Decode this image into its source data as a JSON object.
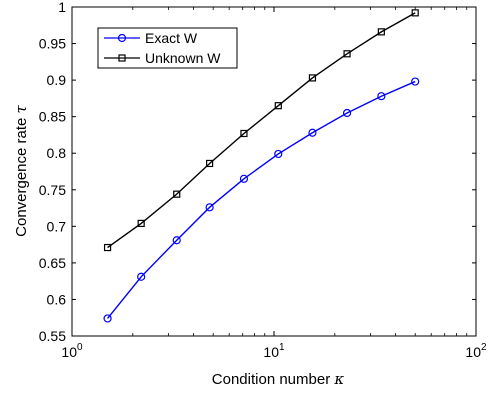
{
  "chart_data": {
    "type": "line",
    "xscale": "log",
    "xlim": [
      1,
      100
    ],
    "ylim": [
      0.55,
      1.0
    ],
    "xlabel": "Condition number",
    "xlabel_symbol": "κ",
    "ylabel": "Convergence rate",
    "ylabel_symbol": "τ",
    "x_ticks": [
      1,
      10,
      100
    ],
    "x_tick_labels": [
      {
        "base": "10",
        "exp": "0"
      },
      {
        "base": "10",
        "exp": "1"
      },
      {
        "base": "10",
        "exp": "2"
      }
    ],
    "y_ticks": [
      0.55,
      0.6,
      0.65,
      0.7,
      0.75,
      0.8,
      0.85,
      0.9,
      0.95,
      1.0
    ],
    "y_tick_labels": [
      "0.55",
      "0.6",
      "0.65",
      "0.7",
      "0.75",
      "0.8",
      "0.85",
      "0.9",
      "0.95",
      "1"
    ],
    "grid": false,
    "legend_position": "top-left",
    "series": [
      {
        "name": "Exact W",
        "color": "#0000ff",
        "marker": "circle",
        "x": [
          1.5,
          2.2,
          3.3,
          4.8,
          7.1,
          10.5,
          15.5,
          23,
          34,
          50
        ],
        "y": [
          0.574,
          0.631,
          0.681,
          0.726,
          0.765,
          0.799,
          0.828,
          0.855,
          0.878,
          0.898
        ]
      },
      {
        "name": "Unknown W",
        "color": "#000000",
        "marker": "square",
        "x": [
          1.5,
          2.2,
          3.3,
          4.8,
          7.1,
          10.5,
          15.5,
          23,
          34,
          50
        ],
        "y": [
          0.671,
          0.704,
          0.744,
          0.786,
          0.827,
          0.865,
          0.903,
          0.936,
          0.966,
          0.992
        ]
      }
    ]
  }
}
